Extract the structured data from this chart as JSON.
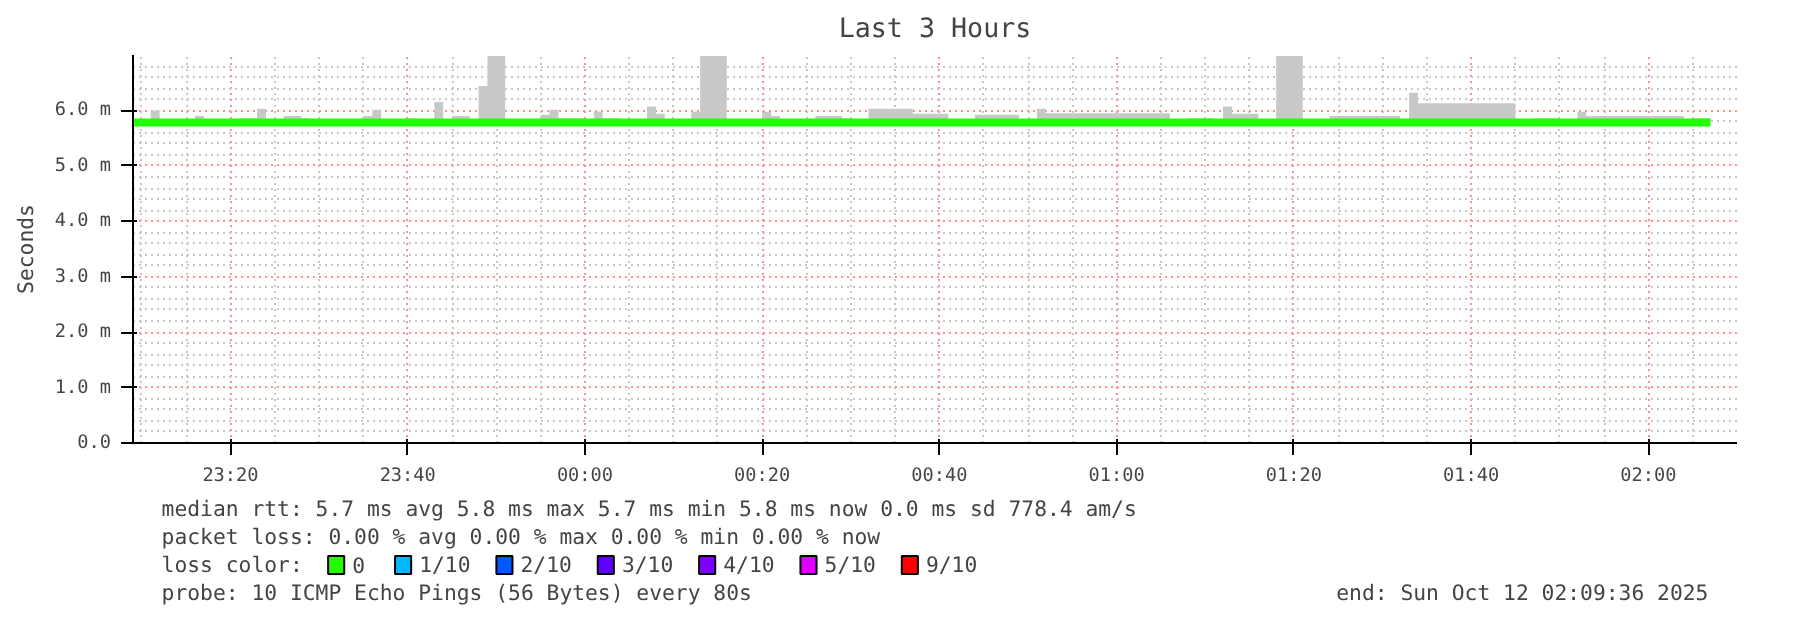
{
  "chart_data": {
    "type": "step",
    "title": "Last 3 Hours",
    "ylabel": "Seconds",
    "x": [
      "2025-10-11T23:09",
      "2025-10-11T23:11",
      "2025-10-11T23:12",
      "2025-10-11T23:14",
      "2025-10-11T23:16",
      "2025-10-11T23:17",
      "2025-10-11T23:21",
      "2025-10-11T23:23",
      "2025-10-11T23:24",
      "2025-10-11T23:26",
      "2025-10-11T23:28",
      "2025-10-11T23:29",
      "2025-10-11T23:35",
      "2025-10-11T23:36",
      "2025-10-11T23:37",
      "2025-10-11T23:40",
      "2025-10-11T23:41",
      "2025-10-11T23:43",
      "2025-10-11T23:44",
      "2025-10-11T23:45",
      "2025-10-11T23:47",
      "2025-10-11T23:48",
      "2025-10-11T23:49",
      "2025-10-11T23:51",
      "2025-10-11T23:55",
      "2025-10-11T23:56",
      "2025-10-11T23:57",
      "2025-10-12T00:00",
      "2025-10-12T00:01",
      "2025-10-12T00:02",
      "2025-10-12T00:04",
      "2025-10-12T00:07",
      "2025-10-12T00:08",
      "2025-10-12T00:09",
      "2025-10-12T00:12",
      "2025-10-12T00:13",
      "2025-10-12T00:16",
      "2025-10-12T00:20",
      "2025-10-12T00:21",
      "2025-10-12T00:22",
      "2025-10-12T00:26",
      "2025-10-12T00:29",
      "2025-10-12T00:30",
      "2025-10-12T00:32",
      "2025-10-12T00:37",
      "2025-10-12T00:41",
      "2025-10-12T00:44",
      "2025-10-12T00:49",
      "2025-10-12T00:51",
      "2025-10-12T00:52",
      "2025-10-12T01:06",
      "2025-10-12T01:08",
      "2025-10-12T01:11",
      "2025-10-12T01:12",
      "2025-10-12T01:13",
      "2025-10-12T01:16",
      "2025-10-12T01:18",
      "2025-10-12T01:21",
      "2025-10-12T01:24",
      "2025-10-12T01:32",
      "2025-10-12T01:33",
      "2025-10-12T01:34",
      "2025-10-12T01:45",
      "2025-10-12T01:47",
      "2025-10-12T01:50",
      "2025-10-12T01:52",
      "2025-10-12T01:53",
      "2025-10-12T02:04",
      "2025-10-12T02:05",
      "2025-10-12T02:07"
    ],
    "series": [
      {
        "name": "0",
        "color": "#22ff00",
        "values": [
          5.78,
          5.78,
          5.78,
          5.78,
          5.78,
          5.78,
          5.78,
          5.78,
          5.78,
          5.78,
          5.78,
          5.78,
          5.78,
          5.78,
          5.78,
          5.78,
          5.78,
          5.78,
          5.78,
          5.78,
          5.78,
          5.78,
          5.78,
          5.78,
          5.78,
          5.78,
          5.78,
          5.78,
          5.78,
          5.78,
          5.78,
          5.78,
          5.78,
          5.78,
          5.78,
          5.78,
          5.78,
          5.78,
          5.78,
          5.78,
          5.78,
          5.78,
          5.78,
          5.78,
          5.78,
          5.78,
          5.78,
          5.78,
          5.78,
          5.78,
          5.78,
          5.78,
          5.78,
          5.78,
          5.78,
          5.78,
          5.78,
          5.78,
          5.78,
          5.78,
          5.78,
          5.78,
          5.78,
          5.78,
          5.78,
          5.78,
          5.78,
          5.78,
          5.78,
          5.78
        ],
        "lower": [
          5.74,
          5.74,
          5.74,
          5.74,
          5.74,
          5.74,
          5.74,
          5.74,
          5.74,
          5.74,
          5.74,
          5.74,
          5.74,
          5.74,
          5.74,
          5.74,
          5.74,
          5.74,
          5.74,
          5.74,
          5.74,
          5.74,
          5.74,
          5.74,
          5.74,
          5.74,
          5.74,
          5.74,
          5.74,
          5.74,
          5.74,
          5.74,
          5.74,
          5.74,
          5.74,
          5.74,
          5.74,
          5.74,
          5.74,
          5.74,
          5.74,
          5.74,
          5.74,
          5.74,
          5.74,
          5.74,
          5.74,
          5.74,
          5.74,
          5.74,
          5.74,
          5.74,
          5.74,
          5.74,
          5.74,
          5.74,
          5.74,
          5.74,
          5.74,
          5.74,
          5.74,
          5.74,
          5.74,
          5.74,
          5.74,
          5.74,
          5.74,
          5.74,
          5.74,
          5.74
        ],
        "upper": [
          5.8,
          6.0,
          5.83,
          5.8,
          5.9,
          5.8,
          5.86,
          6.03,
          5.8,
          5.9,
          5.86,
          5.8,
          5.9,
          6.01,
          5.8,
          5.86,
          5.8,
          6.15,
          5.8,
          5.9,
          5.8,
          6.44,
          6.98,
          5.8,
          5.92,
          6.01,
          5.86,
          5.8,
          5.98,
          5.86,
          5.8,
          6.07,
          5.94,
          5.8,
          5.97,
          6.98,
          5.8,
          5.97,
          5.9,
          5.8,
          5.9,
          5.86,
          5.8,
          6.03,
          5.94,
          5.8,
          5.92,
          5.8,
          6.03,
          5.95,
          5.8,
          5.86,
          5.8,
          6.07,
          5.94,
          5.8,
          6.98,
          5.8,
          5.9,
          5.8,
          6.32,
          6.13,
          5.8,
          5.86,
          5.8,
          5.97,
          5.9,
          5.8,
          5.86,
          5.8
        ]
      },
      {
        "name": "1/10",
        "color": "#00b8ff",
        "values": [
          null,
          null,
          null,
          null,
          null,
          null,
          null,
          null,
          null,
          null,
          null,
          null,
          null,
          null,
          null,
          null,
          null,
          null,
          null,
          null,
          null,
          null,
          null,
          null,
          null,
          null,
          null,
          null,
          null,
          null,
          null,
          null,
          null,
          null,
          null,
          null,
          null,
          null,
          null,
          null,
          null,
          null,
          null,
          null,
          null,
          null,
          null,
          null,
          null,
          null,
          null,
          null,
          null,
          null,
          null,
          null,
          null,
          null,
          null,
          null,
          null,
          null,
          null,
          null,
          null,
          null,
          null,
          null,
          null,
          null
        ]
      },
      {
        "name": "2/10",
        "color": "#0059ff",
        "values": [
          null,
          null,
          null,
          null,
          null,
          null,
          null,
          null,
          null,
          null,
          null,
          null,
          null,
          null,
          null,
          null,
          null,
          null,
          null,
          null,
          null,
          null,
          null,
          null,
          null,
          null,
          null,
          null,
          null,
          null,
          null,
          null,
          null,
          null,
          null,
          null,
          null,
          null,
          null,
          null,
          null,
          null,
          null,
          null,
          null,
          null,
          null,
          null,
          null,
          null,
          null,
          null,
          null,
          null,
          null,
          null,
          null,
          null,
          null,
          null,
          null,
          null,
          null,
          null,
          null,
          null,
          null,
          null,
          null,
          null
        ]
      },
      {
        "name": "3/10",
        "color": "#5e00ff",
        "values": [
          null,
          null,
          null,
          null,
          null,
          null,
          null,
          null,
          null,
          null,
          null,
          null,
          null,
          null,
          null,
          null,
          null,
          null,
          null,
          null,
          null,
          null,
          null,
          null,
          null,
          null,
          null,
          null,
          null,
          null,
          null,
          null,
          null,
          null,
          null,
          null,
          null,
          null,
          null,
          null,
          null,
          null,
          null,
          null,
          null,
          null,
          null,
          null,
          null,
          null,
          null,
          null,
          null,
          null,
          null,
          null,
          null,
          null,
          null,
          null,
          null,
          null,
          null,
          null,
          null,
          null,
          null,
          null,
          null,
          null
        ]
      },
      {
        "name": "4/10",
        "color": "#7e00ff",
        "values": [
          null,
          null,
          null,
          null,
          null,
          null,
          null,
          null,
          null,
          null,
          null,
          null,
          null,
          null,
          null,
          null,
          null,
          null,
          null,
          null,
          null,
          null,
          null,
          null,
          null,
          null,
          null,
          null,
          null,
          null,
          null,
          null,
          null,
          null,
          null,
          null,
          null,
          null,
          null,
          null,
          null,
          null,
          null,
          null,
          null,
          null,
          null,
          null,
          null,
          null,
          null,
          null,
          null,
          null,
          null,
          null,
          null,
          null,
          null,
          null,
          null,
          null,
          null,
          null,
          null,
          null,
          null,
          null,
          null,
          null
        ]
      },
      {
        "name": "5/10",
        "color": "#dd00ff",
        "values": [
          null,
          null,
          null,
          null,
          null,
          null,
          null,
          null,
          null,
          null,
          null,
          null,
          null,
          null,
          null,
          null,
          null,
          null,
          null,
          null,
          null,
          null,
          null,
          null,
          null,
          null,
          null,
          null,
          null,
          null,
          null,
          null,
          null,
          null,
          null,
          null,
          null,
          null,
          null,
          null,
          null,
          null,
          null,
          null,
          null,
          null,
          null,
          null,
          null,
          null,
          null,
          null,
          null,
          null,
          null,
          null,
          null,
          null,
          null,
          null,
          null,
          null,
          null,
          null,
          null,
          null,
          null,
          null,
          null,
          null
        ]
      },
      {
        "name": "9/10",
        "color": "#ff0000",
        "values": [
          null,
          null,
          null,
          null,
          null,
          null,
          null,
          null,
          null,
          null,
          null,
          null,
          null,
          null,
          null,
          null,
          null,
          null,
          null,
          null,
          null,
          null,
          null,
          null,
          null,
          null,
          null,
          null,
          null,
          null,
          null,
          null,
          null,
          null,
          null,
          null,
          null,
          null,
          null,
          null,
          null,
          null,
          null,
          null,
          null,
          null,
          null,
          null,
          null,
          null,
          null,
          null,
          null,
          null,
          null,
          null,
          null,
          null,
          null,
          null,
          null,
          null,
          null,
          null,
          null,
          null,
          null,
          null,
          null,
          null
        ]
      }
    ],
    "legend_title": "loss color:",
    "legend": "bottom",
    "xlim": [
      "2025-10-11T23:09",
      "2025-10-12T02:10"
    ],
    "ylim": [
      0,
      7.0
    ],
    "xticks": [
      {
        "value": "2025-10-11T23:20",
        "label": "23:20"
      },
      {
        "value": "2025-10-11T23:40",
        "label": "23:40"
      },
      {
        "value": "2025-10-12T00:00",
        "label": "00:00"
      },
      {
        "value": "2025-10-12T00:20",
        "label": "00:20"
      },
      {
        "value": "2025-10-12T00:40",
        "label": "00:40"
      },
      {
        "value": "2025-10-12T01:00",
        "label": "01:00"
      },
      {
        "value": "2025-10-12T01:20",
        "label": "01:20"
      },
      {
        "value": "2025-10-12T01:40",
        "label": "01:40"
      },
      {
        "value": "2025-10-12T02:00",
        "label": "02:00"
      }
    ],
    "yticks": [
      {
        "value": 0,
        "label": "0.0"
      },
      {
        "value": 1,
        "label": "1.0 m"
      },
      {
        "value": 2,
        "label": "2.0 m"
      },
      {
        "value": 3,
        "label": "3.0 m"
      },
      {
        "value": 4,
        "label": "4.0 m"
      },
      {
        "value": 5,
        "label": "5.0 m"
      },
      {
        "value": 6,
        "label": "6.0 m"
      }
    ],
    "grid": true,
    "annotations": [
      "median rtt:  5.7 ms avg  5.8 ms max  5.7 ms min  5.8 ms now  0.0 ms sd  778.4   am/s",
      "packet loss: 0.00 % avg  0.00 % max  0.00 % min  0.00 % now",
      "probe:       10 ICMP Echo Pings (56 Bytes) every 80s",
      "end: Sun Oct 12 02:09:36 2025"
    ]
  }
}
